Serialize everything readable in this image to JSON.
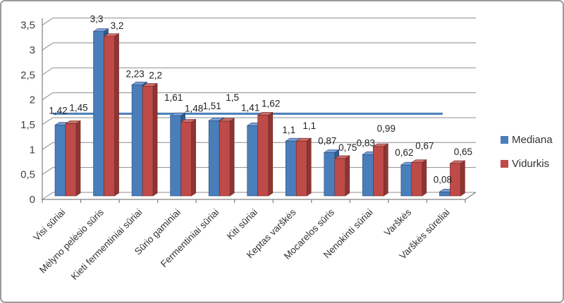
{
  "chart_data": {
    "type": "bar",
    "title": "",
    "xlabel": "",
    "ylabel": "",
    "categories": [
      "Visi sūriai",
      "Mėlyno pelėsio sūris",
      "Kieti fermentiniai sūriai",
      "Sūrio gaminiai",
      "Fermentiniai sūriai",
      "Kiti sūriai",
      "Keptas varškės",
      "Mocarelos sūris",
      "Nenokinti sūriai",
      "Varškės",
      "Varškės sūreliai"
    ],
    "series": [
      {
        "name": "Mediana",
        "color": "#4A7EBB",
        "values": [
          1.42,
          3.3,
          2.23,
          1.61,
          1.51,
          1.41,
          1.1,
          0.87,
          0.83,
          0.62,
          0.08
        ],
        "labels": [
          "1,42",
          "3,3",
          "2,23",
          "1,61",
          "1,51",
          "1,41",
          "1,1",
          "0,87",
          "0,83",
          "0,62",
          "0,08"
        ]
      },
      {
        "name": "Vidurkis",
        "color": "#BE4B48",
        "values": [
          1.45,
          3.2,
          2.2,
          1.48,
          1.5,
          1.62,
          1.1,
          0.75,
          0.99,
          0.67,
          0.65
        ],
        "labels": [
          "1,45",
          "3,2",
          "2,2",
          "1,48",
          "1,5",
          "1,62",
          "1,1",
          "0,75",
          "0,99",
          "0,67",
          "0,65"
        ]
      }
    ],
    "y_ticks": {
      "values": [
        0,
        0.5,
        1,
        1.5,
        2,
        2.5,
        3,
        3.5
      ],
      "labels": [
        "0",
        "0,5",
        "1",
        "1,5",
        "2",
        "2,5",
        "3",
        "3,5"
      ]
    },
    "ylim": [
      0,
      3.5
    ],
    "grid": true,
    "legend_position": "right",
    "bar_style": "3d-clustered",
    "reference_line": {
      "value": 1.65,
      "color": "#4A7EBB"
    },
    "colors": {
      "gridline": "#8C8C8C",
      "axis": "#808080",
      "tick_text": "#3F3F3F",
      "value_label_text": "#1F1F1F"
    }
  }
}
